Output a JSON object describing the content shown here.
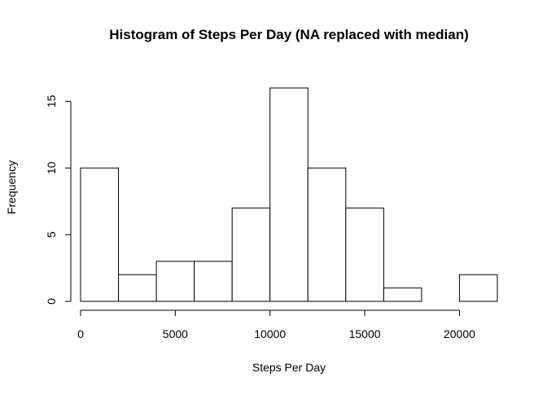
{
  "chart_data": {
    "type": "bar",
    "histogram": true,
    "title": "Histogram of Steps Per Day (NA replaced with median)",
    "xlabel": "Steps Per Day",
    "ylabel": "Frequency",
    "bin_edges": [
      0,
      2000,
      4000,
      6000,
      8000,
      10000,
      12000,
      14000,
      16000,
      18000,
      20000,
      22000
    ],
    "values": [
      10,
      2,
      3,
      3,
      7,
      16,
      10,
      7,
      1,
      0,
      2
    ],
    "xlim": [
      0,
      22000
    ],
    "ylim": [
      0,
      16
    ],
    "x_ticks": [
      0,
      5000,
      10000,
      15000,
      20000
    ],
    "x_tick_labels": [
      "0",
      "5000",
      "10000",
      "15000",
      "20000"
    ],
    "y_ticks": [
      0,
      5,
      10,
      15
    ],
    "y_tick_labels": [
      "0",
      "5",
      "10",
      "15"
    ],
    "bar_fill": "#ffffff",
    "bar_stroke": "#000000",
    "grid": false,
    "legend": "none"
  }
}
